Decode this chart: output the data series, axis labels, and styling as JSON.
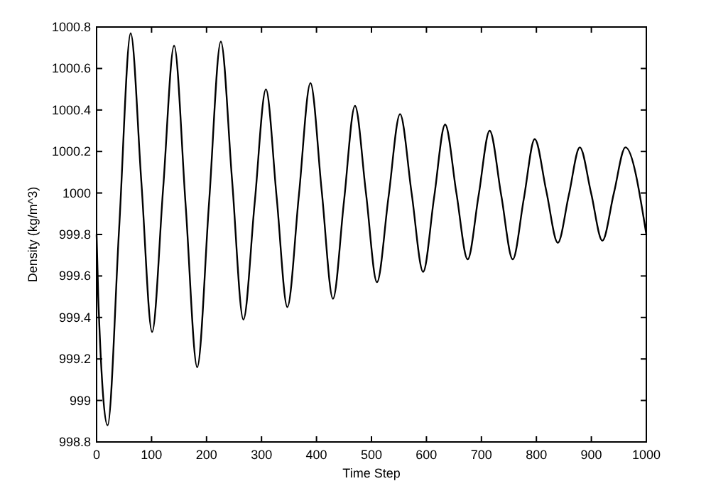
{
  "chart_data": {
    "type": "line",
    "xlabel": "Time Step",
    "ylabel": "Density (kg/m^3)",
    "series": [
      {
        "color": "#000000",
        "x": [
          0,
          3,
          20,
          41,
          62,
          81.5,
          101,
          121,
          141,
          162,
          183,
          204.5,
          226,
          246.5,
          267,
          287.5,
          308,
          327.5,
          347,
          368,
          389,
          409.5,
          430,
          450,
          470,
          490,
          510,
          531,
          552,
          573,
          594,
          614,
          634,
          654.5,
          675,
          695,
          715,
          736,
          757,
          777,
          797,
          818,
          839,
          859,
          879,
          899.5,
          920,
          941,
          962,
          1000
        ],
        "values": [
          999.8,
          999.5,
          998.88,
          999.83,
          1000.77,
          1000.05,
          999.33,
          1000.02,
          1000.71,
          999.94,
          999.16,
          999.95,
          1000.73,
          1000.06,
          999.39,
          999.95,
          1000.5,
          999.98,
          999.45,
          999.99,
          1000.53,
          1000.01,
          999.49,
          999.96,
          1000.42,
          1000,
          999.57,
          999.98,
          1000.38,
          1000,
          999.62,
          999.98,
          1000.33,
          1000,
          999.68,
          999.99,
          1000.3,
          999.99,
          999.68,
          999.97,
          1000.26,
          1000.01,
          999.76,
          999.99,
          1000.22,
          1000,
          999.77,
          1000,
          1000.22,
          999.8
        ]
      }
    ],
    "xlim": [
      0,
      1000
    ],
    "xticks": [
      0,
      100,
      200,
      300,
      400,
      500,
      600,
      700,
      800,
      900,
      1000
    ],
    "ylim": [
      998.8,
      1000.8
    ],
    "yticks": [
      998.8,
      999,
      999.2,
      999.4,
      999.6,
      999.8,
      1000,
      1000.2,
      1000.4,
      1000.6,
      1000.8
    ],
    "line_style": "solid"
  }
}
